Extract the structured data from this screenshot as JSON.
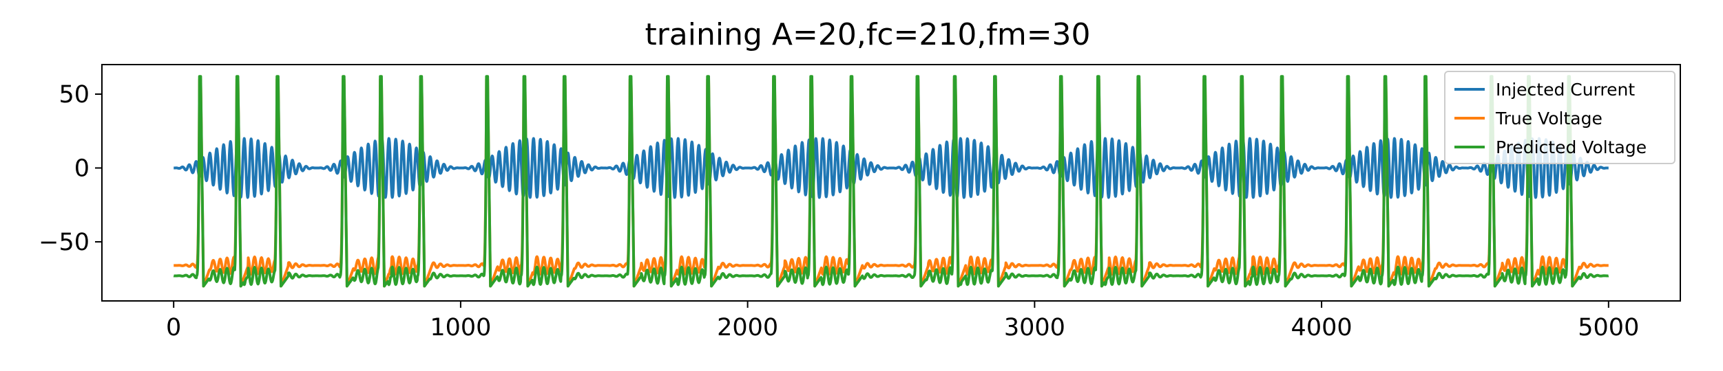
{
  "chart_data": {
    "type": "line",
    "title": "training A=20,fc=210,fm=30",
    "xlabel": "",
    "ylabel": "",
    "xlim": [
      -250,
      5250
    ],
    "ylim": [
      -90,
      70
    ],
    "xticks": [
      0,
      1000,
      2000,
      3000,
      4000,
      5000
    ],
    "xtick_labels": [
      "0",
      "1000",
      "2000",
      "3000",
      "4000",
      "5000"
    ],
    "yticks": [
      -50,
      0,
      50
    ],
    "ytick_labels": [
      "−50",
      "0",
      "50"
    ],
    "grid": false,
    "legend_position": "top-right",
    "x_start": 0,
    "x_end": 5000,
    "series": [
      {
        "name": "Injected Current",
        "color": "#1f77b4",
        "description": "amplitude-modulated sinusoid A=20, carrier fc=210, modulation fm=30",
        "amplitude": 20,
        "fc": 210,
        "fm": 30,
        "range": [
          -20,
          20
        ]
      },
      {
        "name": "True Voltage",
        "color": "#ff7f0e",
        "resting": -66,
        "spike_peak": 60,
        "trough": -80,
        "spike_times": [
          90,
          220,
          360,
          590,
          720,
          860,
          1090,
          1220,
          1360,
          1590,
          1720,
          1860,
          2090,
          2220,
          2360,
          2590,
          2720,
          2860,
          3090,
          3220,
          3360,
          3590,
          3720,
          3860,
          4090,
          4220,
          4360,
          4590,
          4720,
          4860
        ]
      },
      {
        "name": "Predicted Voltage",
        "color": "#2ca02c",
        "resting": -73,
        "spike_peak": 62,
        "trough": -80,
        "spike_times": [
          90,
          220,
          360,
          590,
          720,
          860,
          1090,
          1220,
          1360,
          1590,
          1720,
          1860,
          2090,
          2220,
          2360,
          2590,
          2720,
          2860,
          3090,
          3220,
          3360,
          3590,
          3720,
          3860,
          4090,
          4220,
          4360,
          4590,
          4720,
          4860
        ]
      }
    ]
  }
}
